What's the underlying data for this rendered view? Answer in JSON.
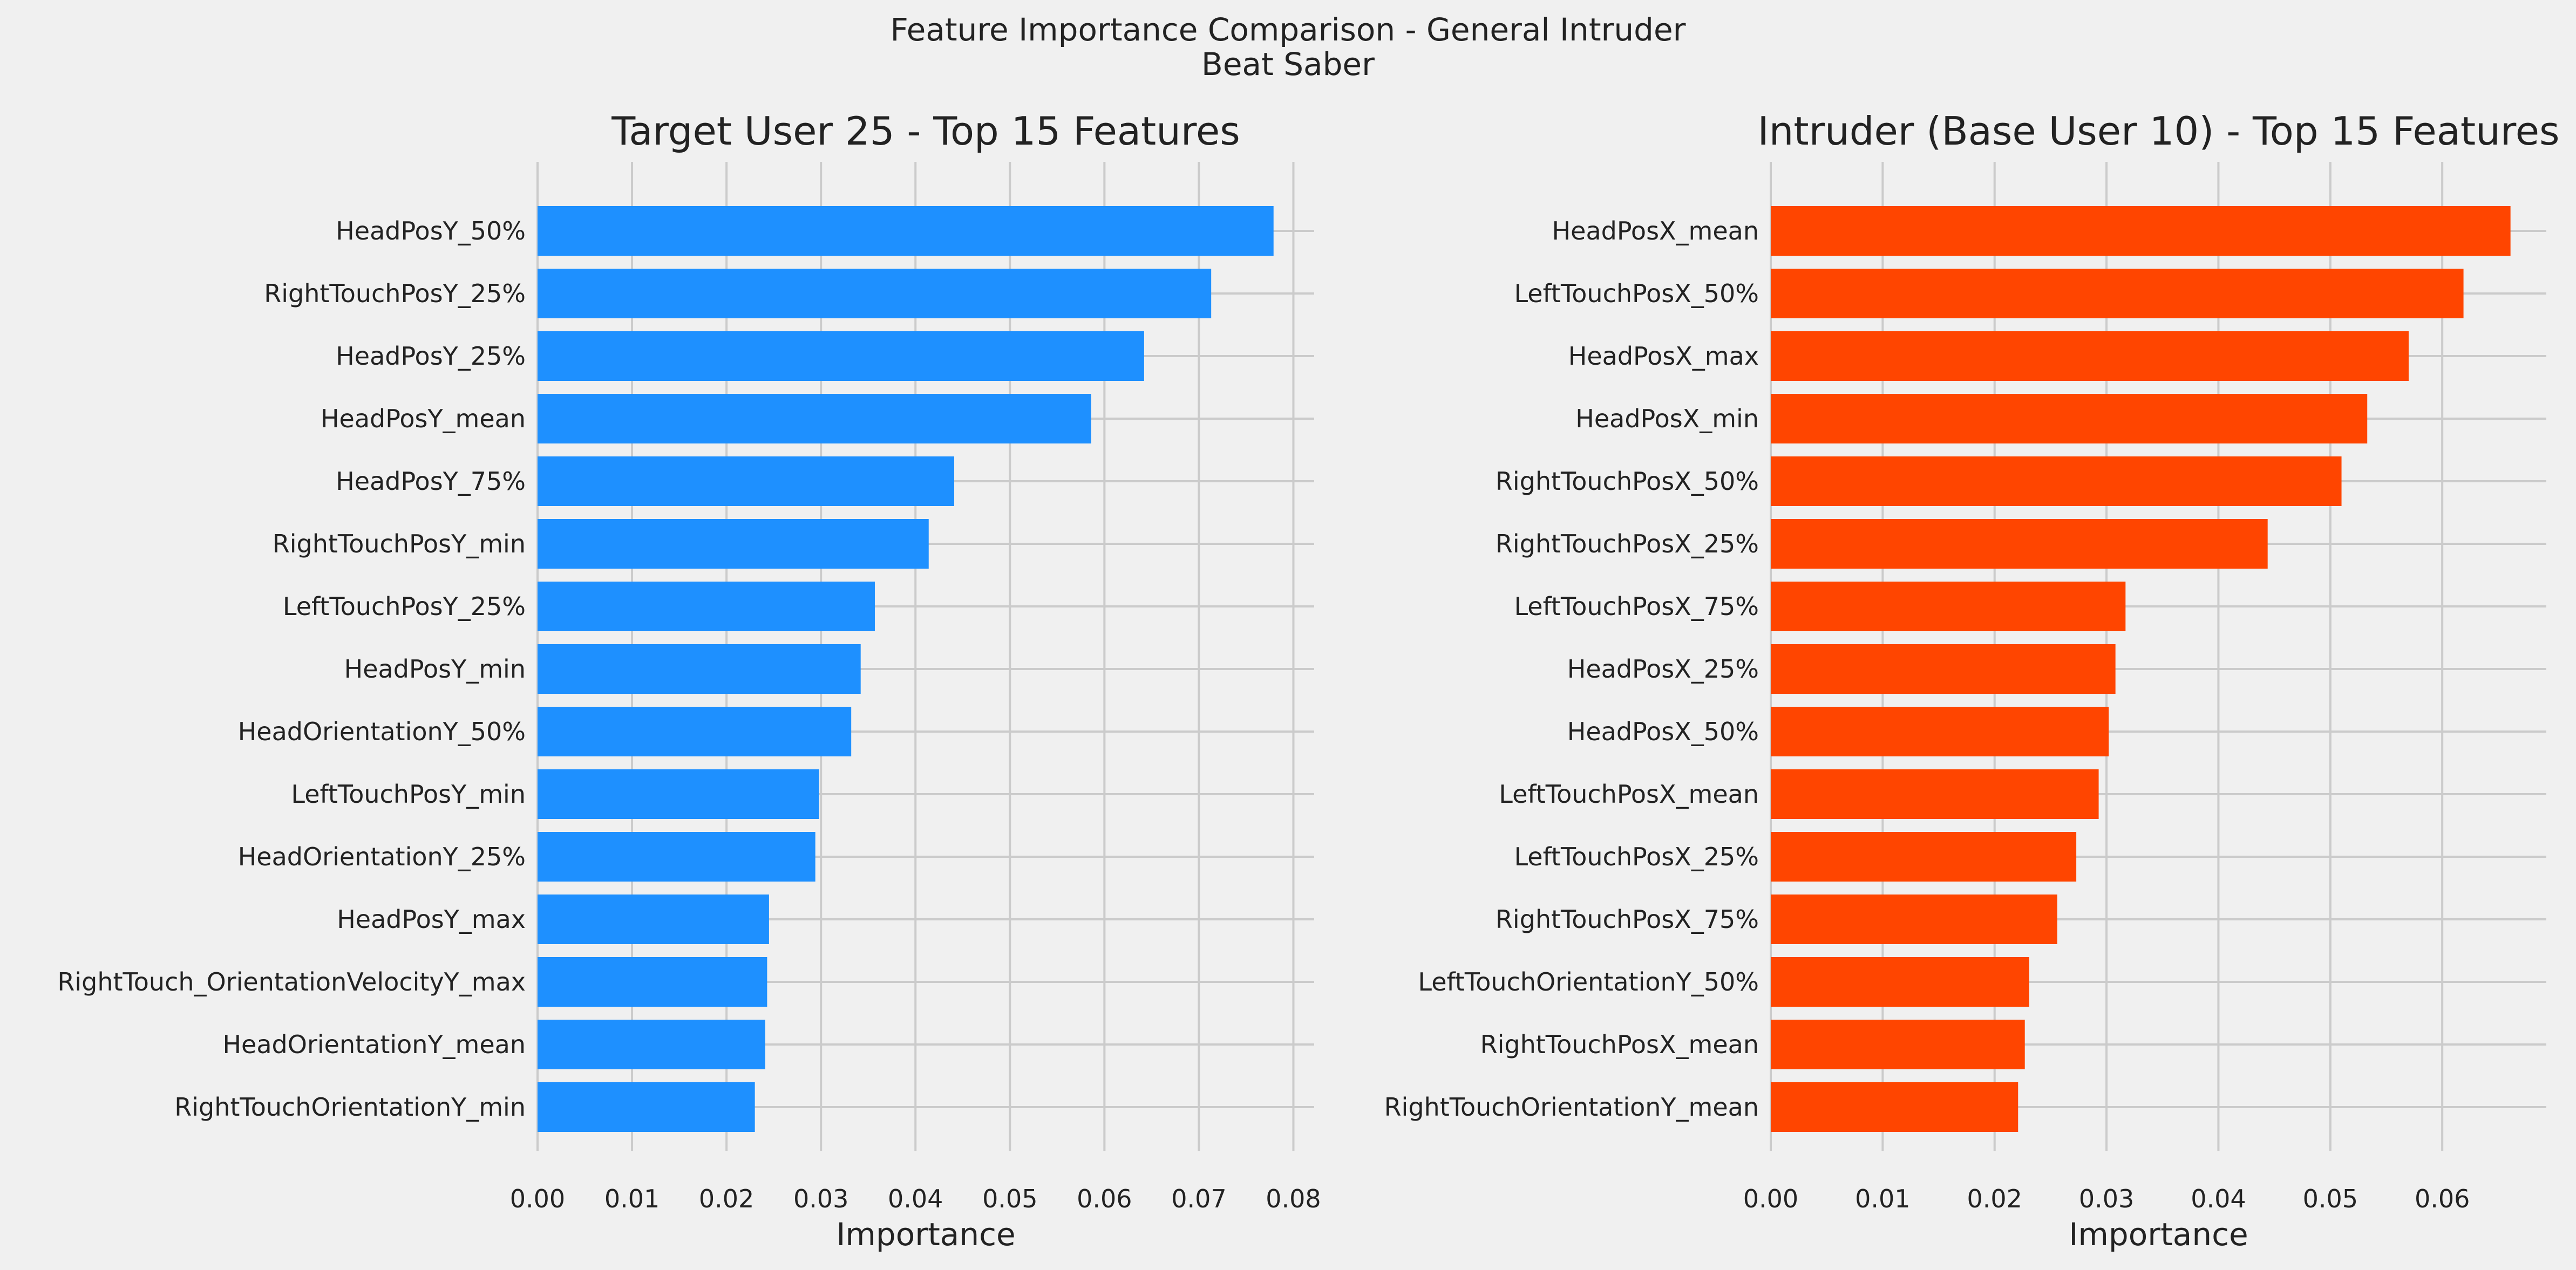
{
  "figure": {
    "title_line1": "Feature Importance Comparison - General Intruder",
    "title_line2": "Beat Saber"
  },
  "chart_data": [
    {
      "type": "bar",
      "orientation": "horizontal",
      "title": "Target User 25 - Top 15 Features",
      "xlabel": "Importance",
      "ylabel": "",
      "xlim": [
        0,
        0.0822
      ],
      "xticks": [
        0.0,
        0.01,
        0.02,
        0.03,
        0.04,
        0.05,
        0.06,
        0.07,
        0.08
      ],
      "xtick_labels": [
        "0.00",
        "0.01",
        "0.02",
        "0.03",
        "0.04",
        "0.05",
        "0.06",
        "0.07",
        "0.08"
      ],
      "grid": true,
      "color": "#1e90ff",
      "categories": [
        "HeadPosY_50%",
        "RightTouchPosY_25%",
        "HeadPosY_25%",
        "HeadPosY_mean",
        "HeadPosY_75%",
        "RightTouchPosY_min",
        "LeftTouchPosY_25%",
        "HeadPosY_min",
        "HeadOrientationY_50%",
        "LeftTouchPosY_min",
        "HeadOrientationY_25%",
        "HeadPosY_max",
        "RightTouch_OrientationVelocityY_max",
        "HeadOrientationY_mean",
        "RightTouchOrientationY_min"
      ],
      "values": [
        0.0779,
        0.0713,
        0.0642,
        0.0586,
        0.0441,
        0.0414,
        0.0357,
        0.0342,
        0.0332,
        0.0298,
        0.0294,
        0.0245,
        0.0243,
        0.0241,
        0.023
      ]
    },
    {
      "type": "bar",
      "orientation": "horizontal",
      "title": "Intruder (Base User 10) - Top 15 Features",
      "xlabel": "Importance",
      "ylabel": "",
      "xlim": [
        0,
        0.0693
      ],
      "xticks": [
        0.0,
        0.01,
        0.02,
        0.03,
        0.04,
        0.05,
        0.06
      ],
      "xtick_labels": [
        "0.00",
        "0.01",
        "0.02",
        "0.03",
        "0.04",
        "0.05",
        "0.06"
      ],
      "grid": true,
      "color": "#ff4500",
      "categories": [
        "HeadPosX_mean",
        "LeftTouchPosX_50%",
        "HeadPosX_max",
        "HeadPosX_min",
        "RightTouchPosX_50%",
        "RightTouchPosX_25%",
        "LeftTouchPosX_75%",
        "HeadPosX_25%",
        "HeadPosX_50%",
        "LeftTouchPosX_mean",
        "LeftTouchPosX_25%",
        "RightTouchPosX_75%",
        "LeftTouchOrientationY_50%",
        "RightTouchPosX_mean",
        "RightTouchOrientationY_mean"
      ],
      "values": [
        0.0661,
        0.0619,
        0.057,
        0.0533,
        0.051,
        0.0444,
        0.0317,
        0.0308,
        0.0302,
        0.0293,
        0.0273,
        0.0256,
        0.0231,
        0.0227,
        0.0221
      ]
    }
  ]
}
